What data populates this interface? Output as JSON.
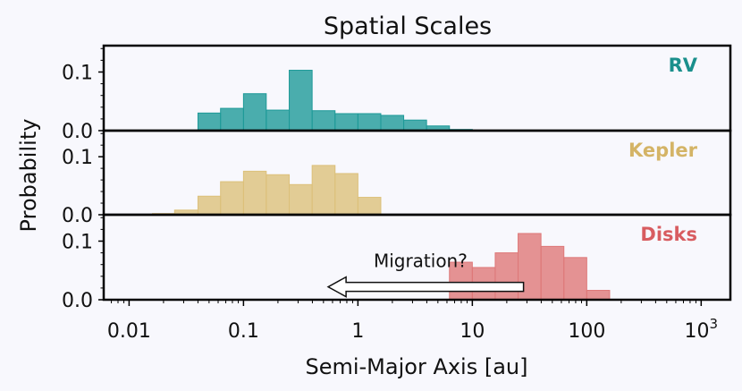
{
  "chart_data": {
    "type": "bar",
    "title": "Spatial Scales",
    "xlabel": "Semi-Major Axis [au]",
    "ylabel": "Probability",
    "xscale": "log",
    "xlim": [
      0.006,
      1800
    ],
    "x_ticks": [
      {
        "value": 0.01,
        "label": "0.01"
      },
      {
        "value": 0.1,
        "label": "0.1"
      },
      {
        "value": 1,
        "label": "1"
      },
      {
        "value": 10,
        "label": "10"
      },
      {
        "value": 100,
        "label": "100"
      },
      {
        "value": 1000,
        "label": "10",
        "sup": "3"
      }
    ],
    "panels": [
      {
        "name": "RV",
        "color": "#1e9a98",
        "label_color": "#1a8f8c",
        "ylim": [
          0,
          0.145
        ],
        "y_ticks": [
          {
            "value": 0.0,
            "label": "0.0"
          },
          {
            "value": 0.1,
            "label": "0.1"
          }
        ],
        "bins": [
          {
            "x0": 0.04,
            "x1": 0.063,
            "y": 0.03
          },
          {
            "x0": 0.063,
            "x1": 0.1,
            "y": 0.038
          },
          {
            "x0": 0.1,
            "x1": 0.158,
            "y": 0.063
          },
          {
            "x0": 0.158,
            "x1": 0.251,
            "y": 0.035
          },
          {
            "x0": 0.251,
            "x1": 0.398,
            "y": 0.103
          },
          {
            "x0": 0.398,
            "x1": 0.631,
            "y": 0.034
          },
          {
            "x0": 0.631,
            "x1": 1.0,
            "y": 0.029
          },
          {
            "x0": 1.0,
            "x1": 1.585,
            "y": 0.029
          },
          {
            "x0": 1.585,
            "x1": 2.512,
            "y": 0.026
          },
          {
            "x0": 2.512,
            "x1": 3.981,
            "y": 0.018
          },
          {
            "x0": 3.981,
            "x1": 6.31,
            "y": 0.008
          },
          {
            "x0": 6.31,
            "x1": 10.0,
            "y": 0.002
          }
        ]
      },
      {
        "name": "Kepler",
        "color": "#dcc07a",
        "label_color": "#d4b466",
        "ylim": [
          0,
          0.145
        ],
        "y_ticks": [
          {
            "value": 0.0,
            "label": "0.0"
          },
          {
            "value": 0.1,
            "label": "0.1"
          }
        ],
        "bins": [
          {
            "x0": 0.016,
            "x1": 0.025,
            "y": 0.002
          },
          {
            "x0": 0.025,
            "x1": 0.04,
            "y": 0.008
          },
          {
            "x0": 0.04,
            "x1": 0.063,
            "y": 0.032
          },
          {
            "x0": 0.063,
            "x1": 0.1,
            "y": 0.057
          },
          {
            "x0": 0.1,
            "x1": 0.158,
            "y": 0.075
          },
          {
            "x0": 0.158,
            "x1": 0.251,
            "y": 0.069
          },
          {
            "x0": 0.251,
            "x1": 0.398,
            "y": 0.052
          },
          {
            "x0": 0.398,
            "x1": 0.631,
            "y": 0.085
          },
          {
            "x0": 0.631,
            "x1": 1.0,
            "y": 0.071
          },
          {
            "x0": 1.0,
            "x1": 1.585,
            "y": 0.03
          }
        ]
      },
      {
        "name": "Disks",
        "color": "#de7878",
        "label_color": "#d85c60",
        "ylim": [
          0,
          0.145
        ],
        "y_ticks": [
          {
            "value": 0.0,
            "label": "0.0"
          },
          {
            "value": 0.1,
            "label": "0.1"
          }
        ],
        "bins": [
          {
            "x0": 6.31,
            "x1": 10.0,
            "y": 0.064
          },
          {
            "x0": 10.0,
            "x1": 15.85,
            "y": 0.055
          },
          {
            "x0": 15.85,
            "x1": 25.12,
            "y": 0.08
          },
          {
            "x0": 25.12,
            "x1": 39.81,
            "y": 0.113
          },
          {
            "x0": 39.81,
            "x1": 63.1,
            "y": 0.091
          },
          {
            "x0": 63.1,
            "x1": 100.0,
            "y": 0.072
          },
          {
            "x0": 100.0,
            "x1": 158.5,
            "y": 0.016
          }
        ],
        "annotation": {
          "text": "Migration?",
          "arrow_from_x": 28,
          "arrow_to_x": 0.55,
          "arrow_y": 0.022
        }
      }
    ]
  }
}
